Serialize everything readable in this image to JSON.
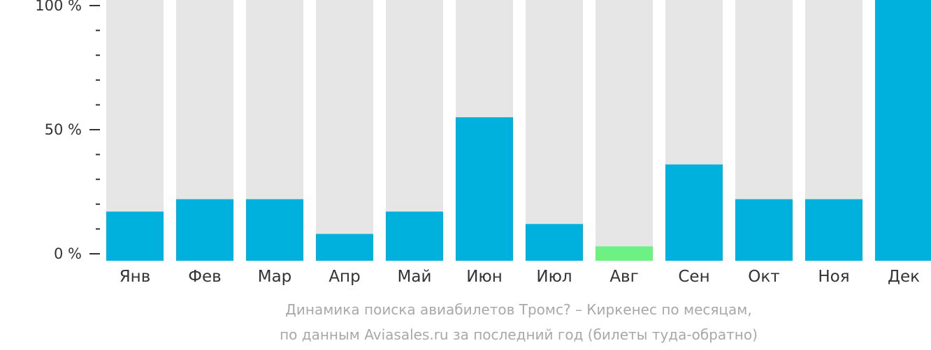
{
  "chart_data": {
    "type": "bar",
    "categories": [
      "Янв",
      "Фев",
      "Мар",
      "Апр",
      "Май",
      "Июн",
      "Июл",
      "Авг",
      "Сен",
      "Окт",
      "Ноя",
      "Дек"
    ],
    "values": [
      17,
      22,
      22,
      8,
      17,
      55,
      12,
      3,
      36,
      22,
      22,
      100
    ],
    "highlight_index": 7,
    "ylim": [
      0,
      100
    ],
    "yticks": [
      {
        "value": 100,
        "label": "100 %"
      },
      {
        "value": 50,
        "label": "50 %"
      },
      {
        "value": 0,
        "label": "0 %"
      }
    ],
    "minor_tick_step": 10,
    "colors": {
      "bar": "#00b1dd",
      "highlight": "#6df183",
      "background_bar": "#e6e6e6",
      "text": "#333333",
      "caption": "#a8a8a8"
    }
  },
  "caption": {
    "line1": "Динамика поиска авиабилетов Тромс? – Киркенес по месяцам,",
    "line2": "по данным Aviasales.ru за последний год (билеты туда-обратно)"
  }
}
